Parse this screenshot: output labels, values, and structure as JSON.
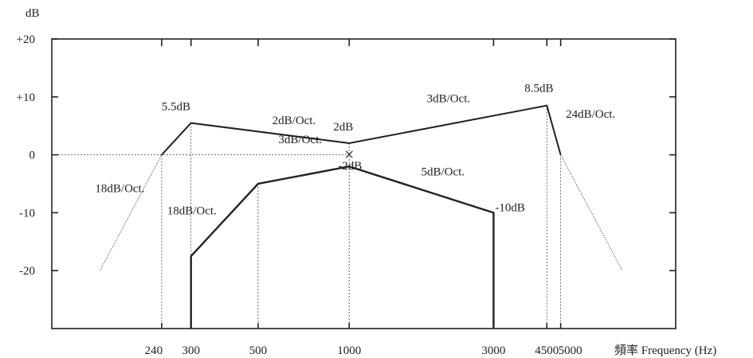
{
  "chart_data": {
    "type": "line",
    "ylabel": "dB",
    "xlabel": "頻率 Frequency (Hz)",
    "xscale": "log",
    "xlim": [
      104,
      12000
    ],
    "ylim": [
      -30,
      20
    ],
    "y_ticks": [
      {
        "value": 20,
        "label": "+20"
      },
      {
        "value": 10,
        "label": "+10"
      },
      {
        "value": 0,
        "label": "0"
      },
      {
        "value": -10,
        "label": "-10"
      },
      {
        "value": -20,
        "label": "-20"
      }
    ],
    "x_ticks": [
      {
        "value": 240,
        "label": "240"
      },
      {
        "value": 300,
        "label": "300"
      },
      {
        "value": 500,
        "label": "500"
      },
      {
        "value": 1000,
        "label": "1000"
      },
      {
        "value": 3000,
        "label": "3000"
      },
      {
        "value": 4500,
        "label": "4500"
      },
      {
        "value": 5000,
        "label": "5000"
      }
    ],
    "series": [
      {
        "role": "upper",
        "points": [
          [
            240,
            0
          ],
          [
            300,
            5.5
          ],
          [
            1000,
            2
          ],
          [
            4500,
            8.5
          ],
          [
            5000,
            0
          ]
        ]
      },
      {
        "role": "lower",
        "points": [
          [
            300,
            -30
          ],
          [
            300,
            -17.5
          ],
          [
            500,
            -5
          ],
          [
            1000,
            -2
          ],
          [
            3000,
            -10
          ],
          [
            3000,
            -30
          ]
        ]
      },
      {
        "role": "skirt",
        "points": [
          [
            150,
            -20
          ],
          [
            240,
            0
          ]
        ]
      },
      {
        "role": "skirt",
        "points": [
          [
            5000,
            0
          ],
          [
            8000,
            -20
          ]
        ]
      }
    ],
    "marker": {
      "x": 1000,
      "y": 0,
      "symbol": "×"
    },
    "annotations": [
      {
        "text": "5.5dB",
        "x": 300,
        "y": 5.5
      },
      {
        "text": "2dB/Oct.",
        "x": 550,
        "y": 5
      },
      {
        "text": "2dB",
        "x": 1000,
        "y": 2
      },
      {
        "text": "3dB/Oct.",
        "x": 2100,
        "y": 6.5
      },
      {
        "text": "8.5dB",
        "x": 4500,
        "y": 8.5
      },
      {
        "text": "24dB/Oct.",
        "x": 5200,
        "y": 3.5
      },
      {
        "text": "18dB/Oct.",
        "x": 150,
        "y": -6
      },
      {
        "text": "3dB/Oct.",
        "x": 700,
        "y": -1
      },
      {
        "text": "-2dB",
        "x": 1000,
        "y": -2
      },
      {
        "text": "5dB/Oct.",
        "x": 1750,
        "y": -3
      },
      {
        "text": "-10dB",
        "x": 3000,
        "y": -10
      },
      {
        "text": "18dB/Oct.",
        "x": 300,
        "y": -11
      }
    ]
  }
}
